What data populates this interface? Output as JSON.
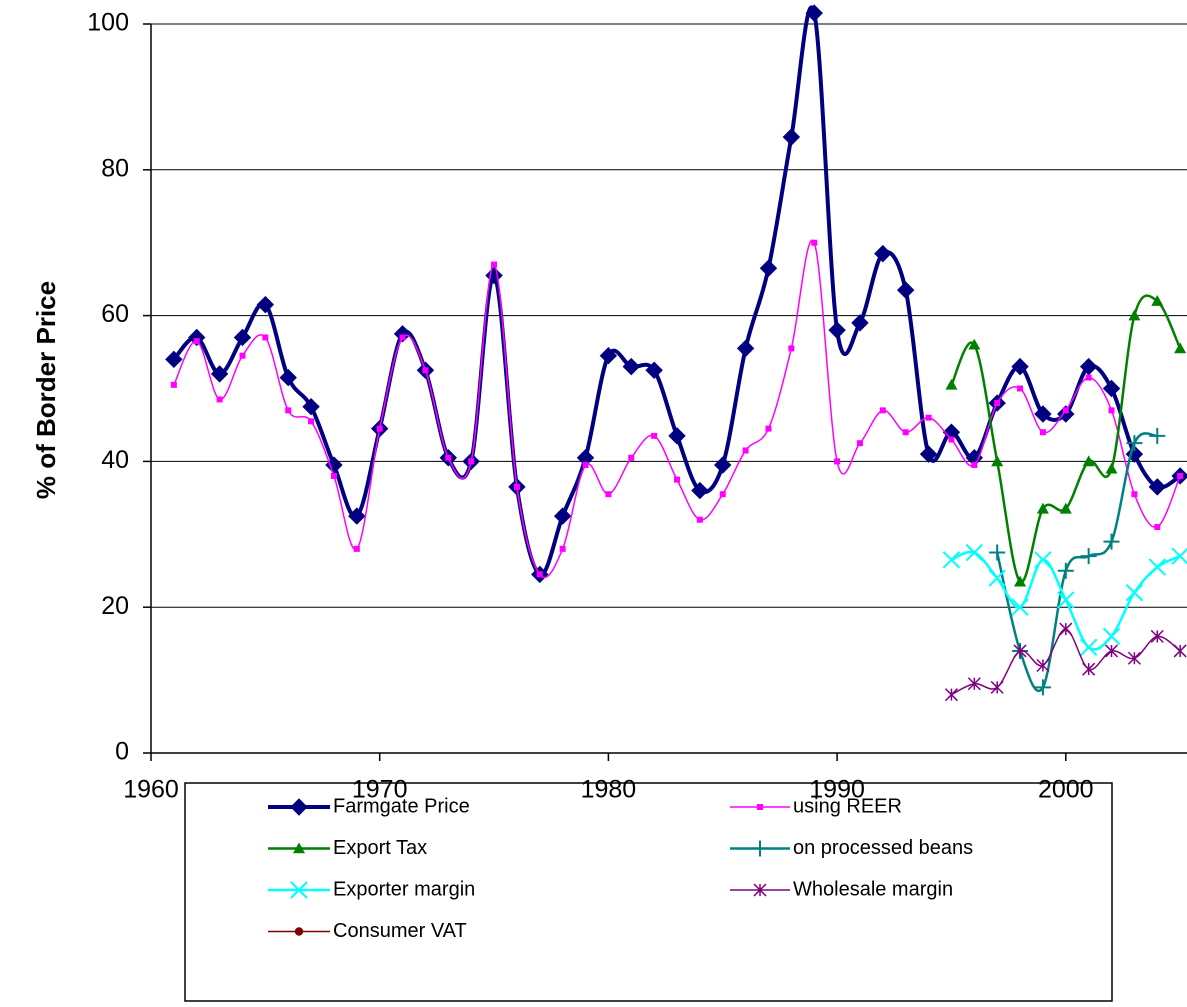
{
  "chart_data": {
    "type": "line",
    "y_label": "% of Border Price",
    "xlim": [
      1960,
      2005.3
    ],
    "xticks": [
      1960,
      1970,
      1980,
      1990,
      2000
    ],
    "ylim": [
      0,
      100
    ],
    "yticks": [
      0,
      20,
      40,
      60,
      80,
      100
    ],
    "grid": true,
    "smooth": true,
    "series": [
      {
        "name": "Farmgate Price",
        "color": "#000080",
        "marker": "diamond",
        "width": 4,
        "x": [
          1961,
          1962,
          1963,
          1964,
          1965,
          1966,
          1967,
          1968,
          1969,
          1970,
          1971,
          1972,
          1973,
          1974,
          1975,
          1976,
          1977,
          1978,
          1979,
          1980,
          1981,
          1982,
          1983,
          1984,
          1985,
          1986,
          1987,
          1988,
          1989,
          1990,
          1991,
          1992,
          1993,
          1994,
          1995,
          1996,
          1997,
          1998,
          1999,
          2000,
          2001,
          2002,
          2003,
          2004,
          2005
        ],
        "values": [
          54,
          57,
          52,
          57,
          61.5,
          51.5,
          47.5,
          39.5,
          32.5,
          44.5,
          57.5,
          52.5,
          40.5,
          40,
          65.5,
          36.5,
          24.5,
          32.5,
          40.5,
          54.5,
          53,
          52.5,
          43.5,
          36,
          39.5,
          55.5,
          66.5,
          84.5,
          101.5,
          58,
          59,
          68.5,
          63.5,
          41,
          44,
          40.5,
          48,
          53,
          46.5,
          46.5,
          53,
          50,
          41,
          36.5,
          38
        ]
      },
      {
        "name": "using REER",
        "color": "#ff00ff",
        "marker": "square",
        "width": 1.5,
        "x": [
          1961,
          1962,
          1963,
          1964,
          1965,
          1966,
          1967,
          1968,
          1969,
          1970,
          1971,
          1972,
          1973,
          1974,
          1975,
          1976,
          1977,
          1978,
          1979,
          1980,
          1981,
          1982,
          1983,
          1984,
          1985,
          1986,
          1987,
          1988,
          1989,
          1990,
          1991,
          1992,
          1993,
          1994,
          1995,
          1996,
          1997,
          1998,
          1999,
          2000,
          2001,
          2002,
          2003,
          2004,
          2005
        ],
        "values": [
          50.5,
          56.5,
          48.5,
          54.5,
          57,
          47,
          45.5,
          38,
          28,
          44.5,
          57,
          52.5,
          40.5,
          40,
          67,
          36.5,
          24.5,
          28,
          39.5,
          35.5,
          40.5,
          43.5,
          37.5,
          32,
          35.5,
          41.5,
          44.5,
          55.5,
          70,
          40,
          42.5,
          47,
          44,
          46,
          43,
          39.5,
          48,
          50,
          44,
          47,
          51.5,
          47,
          35.5,
          31,
          38
        ]
      },
      {
        "name": "Export Tax",
        "color": "#008000",
        "marker": "triangle",
        "width": 2.5,
        "x": [
          1995,
          1996,
          1997,
          1998,
          1999,
          2000,
          2001,
          2002,
          2003,
          2004,
          2005
        ],
        "values": [
          50.5,
          56,
          40,
          23.5,
          33.5,
          33.5,
          40,
          39,
          60,
          62,
          55.5
        ]
      },
      {
        "name": "on processed beans",
        "color": "#008080",
        "marker": "plus",
        "width": 2.5,
        "x": [
          1997,
          1998,
          1999,
          2000,
          2001,
          2002,
          2003,
          2004
        ],
        "values": [
          27.5,
          14,
          9,
          25,
          27,
          29,
          42.5,
          43.5
        ]
      },
      {
        "name": "Exporter margin",
        "color": "#00ffff",
        "marker": "cross",
        "width": 2.5,
        "x": [
          1995,
          1996,
          1997,
          1998,
          1999,
          2000,
          2001,
          2002,
          2003,
          2004,
          2005
        ],
        "values": [
          26.5,
          27.5,
          24,
          20,
          26.5,
          21,
          14.5,
          16,
          22,
          25.5,
          27
        ]
      },
      {
        "name": "Wholesale margin",
        "color": "#800080",
        "marker": "star",
        "width": 1.5,
        "x": [
          1995,
          1996,
          1997,
          1998,
          1999,
          2000,
          2001,
          2002,
          2003,
          2004,
          2005
        ],
        "values": [
          8,
          9.5,
          9,
          14,
          12,
          17,
          11.5,
          14,
          13,
          16,
          14
        ]
      },
      {
        "name": "Consumer VAT",
        "color": "#800000",
        "marker": "circle",
        "width": 1.5,
        "x": [],
        "values": []
      }
    ]
  }
}
